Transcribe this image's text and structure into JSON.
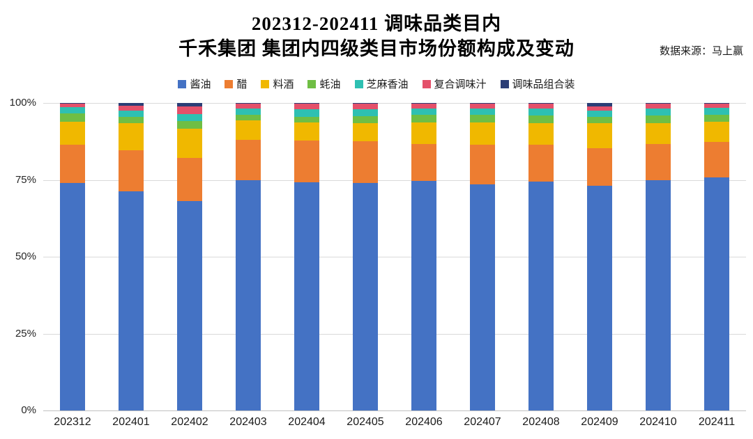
{
  "header": {
    "title_line1": "202312-202411 调味品类目内",
    "title_line2": "千禾集团 集团内四级类目市场份额构成及变动",
    "source": "数据来源：马上赢"
  },
  "chart_data": {
    "type": "bar",
    "subtype": "stacked-100-percent",
    "title": "202312-202411 调味品类目内 千禾集团 集团内四级类目市场份额构成及变动",
    "xlabel": "",
    "ylabel": "",
    "ylim": [
      0,
      100
    ],
    "yticks": [
      {
        "value": 0,
        "label": "0%"
      },
      {
        "value": 25,
        "label": "25%"
      },
      {
        "value": 50,
        "label": "50%"
      },
      {
        "value": 75,
        "label": "75%"
      },
      {
        "value": 100,
        "label": "100%"
      }
    ],
    "grid": true,
    "legend_position": "top",
    "categories": [
      "202312",
      "202401",
      "202402",
      "202403",
      "202404",
      "202405",
      "202406",
      "202407",
      "202408",
      "202409",
      "202410",
      "202411"
    ],
    "series": [
      {
        "name": "酱油",
        "color": "#4472C4",
        "values": [
          74.0,
          71.2,
          68.0,
          75.0,
          74.2,
          74.0,
          74.7,
          73.5,
          74.5,
          73.0,
          75.0,
          75.8
        ]
      },
      {
        "name": "醋",
        "color": "#ED7D31",
        "values": [
          12.4,
          13.5,
          14.2,
          13.0,
          13.5,
          13.6,
          12.0,
          12.9,
          12.0,
          12.3,
          11.6,
          11.6
        ]
      },
      {
        "name": "料酒",
        "color": "#F0B800",
        "values": [
          7.6,
          8.7,
          9.5,
          6.4,
          6.0,
          5.8,
          7.0,
          7.2,
          7.0,
          8.1,
          6.9,
          6.4
        ]
      },
      {
        "name": "蚝油",
        "color": "#6FBE44",
        "values": [
          2.6,
          2.1,
          2.4,
          1.7,
          1.8,
          2.3,
          2.4,
          2.6,
          2.5,
          2.1,
          2.4,
          2.3
        ]
      },
      {
        "name": "芝麻香油",
        "color": "#2EC0B2",
        "values": [
          2.0,
          2.0,
          2.3,
          2.0,
          2.4,
          2.2,
          2.2,
          1.9,
          2.2,
          2.0,
          2.3,
          2.3
        ]
      },
      {
        "name": "复合调味汁",
        "color": "#E4506A",
        "values": [
          1.2,
          1.6,
          2.5,
          1.7,
          1.9,
          1.9,
          1.5,
          1.7,
          1.6,
          1.3,
          1.6,
          1.4
        ]
      },
      {
        "name": "调味品组合装",
        "color": "#2B3E76",
        "values": [
          0.2,
          0.9,
          1.1,
          0.2,
          0.2,
          0.2,
          0.2,
          0.2,
          0.2,
          1.2,
          0.2,
          0.2
        ]
      }
    ]
  }
}
